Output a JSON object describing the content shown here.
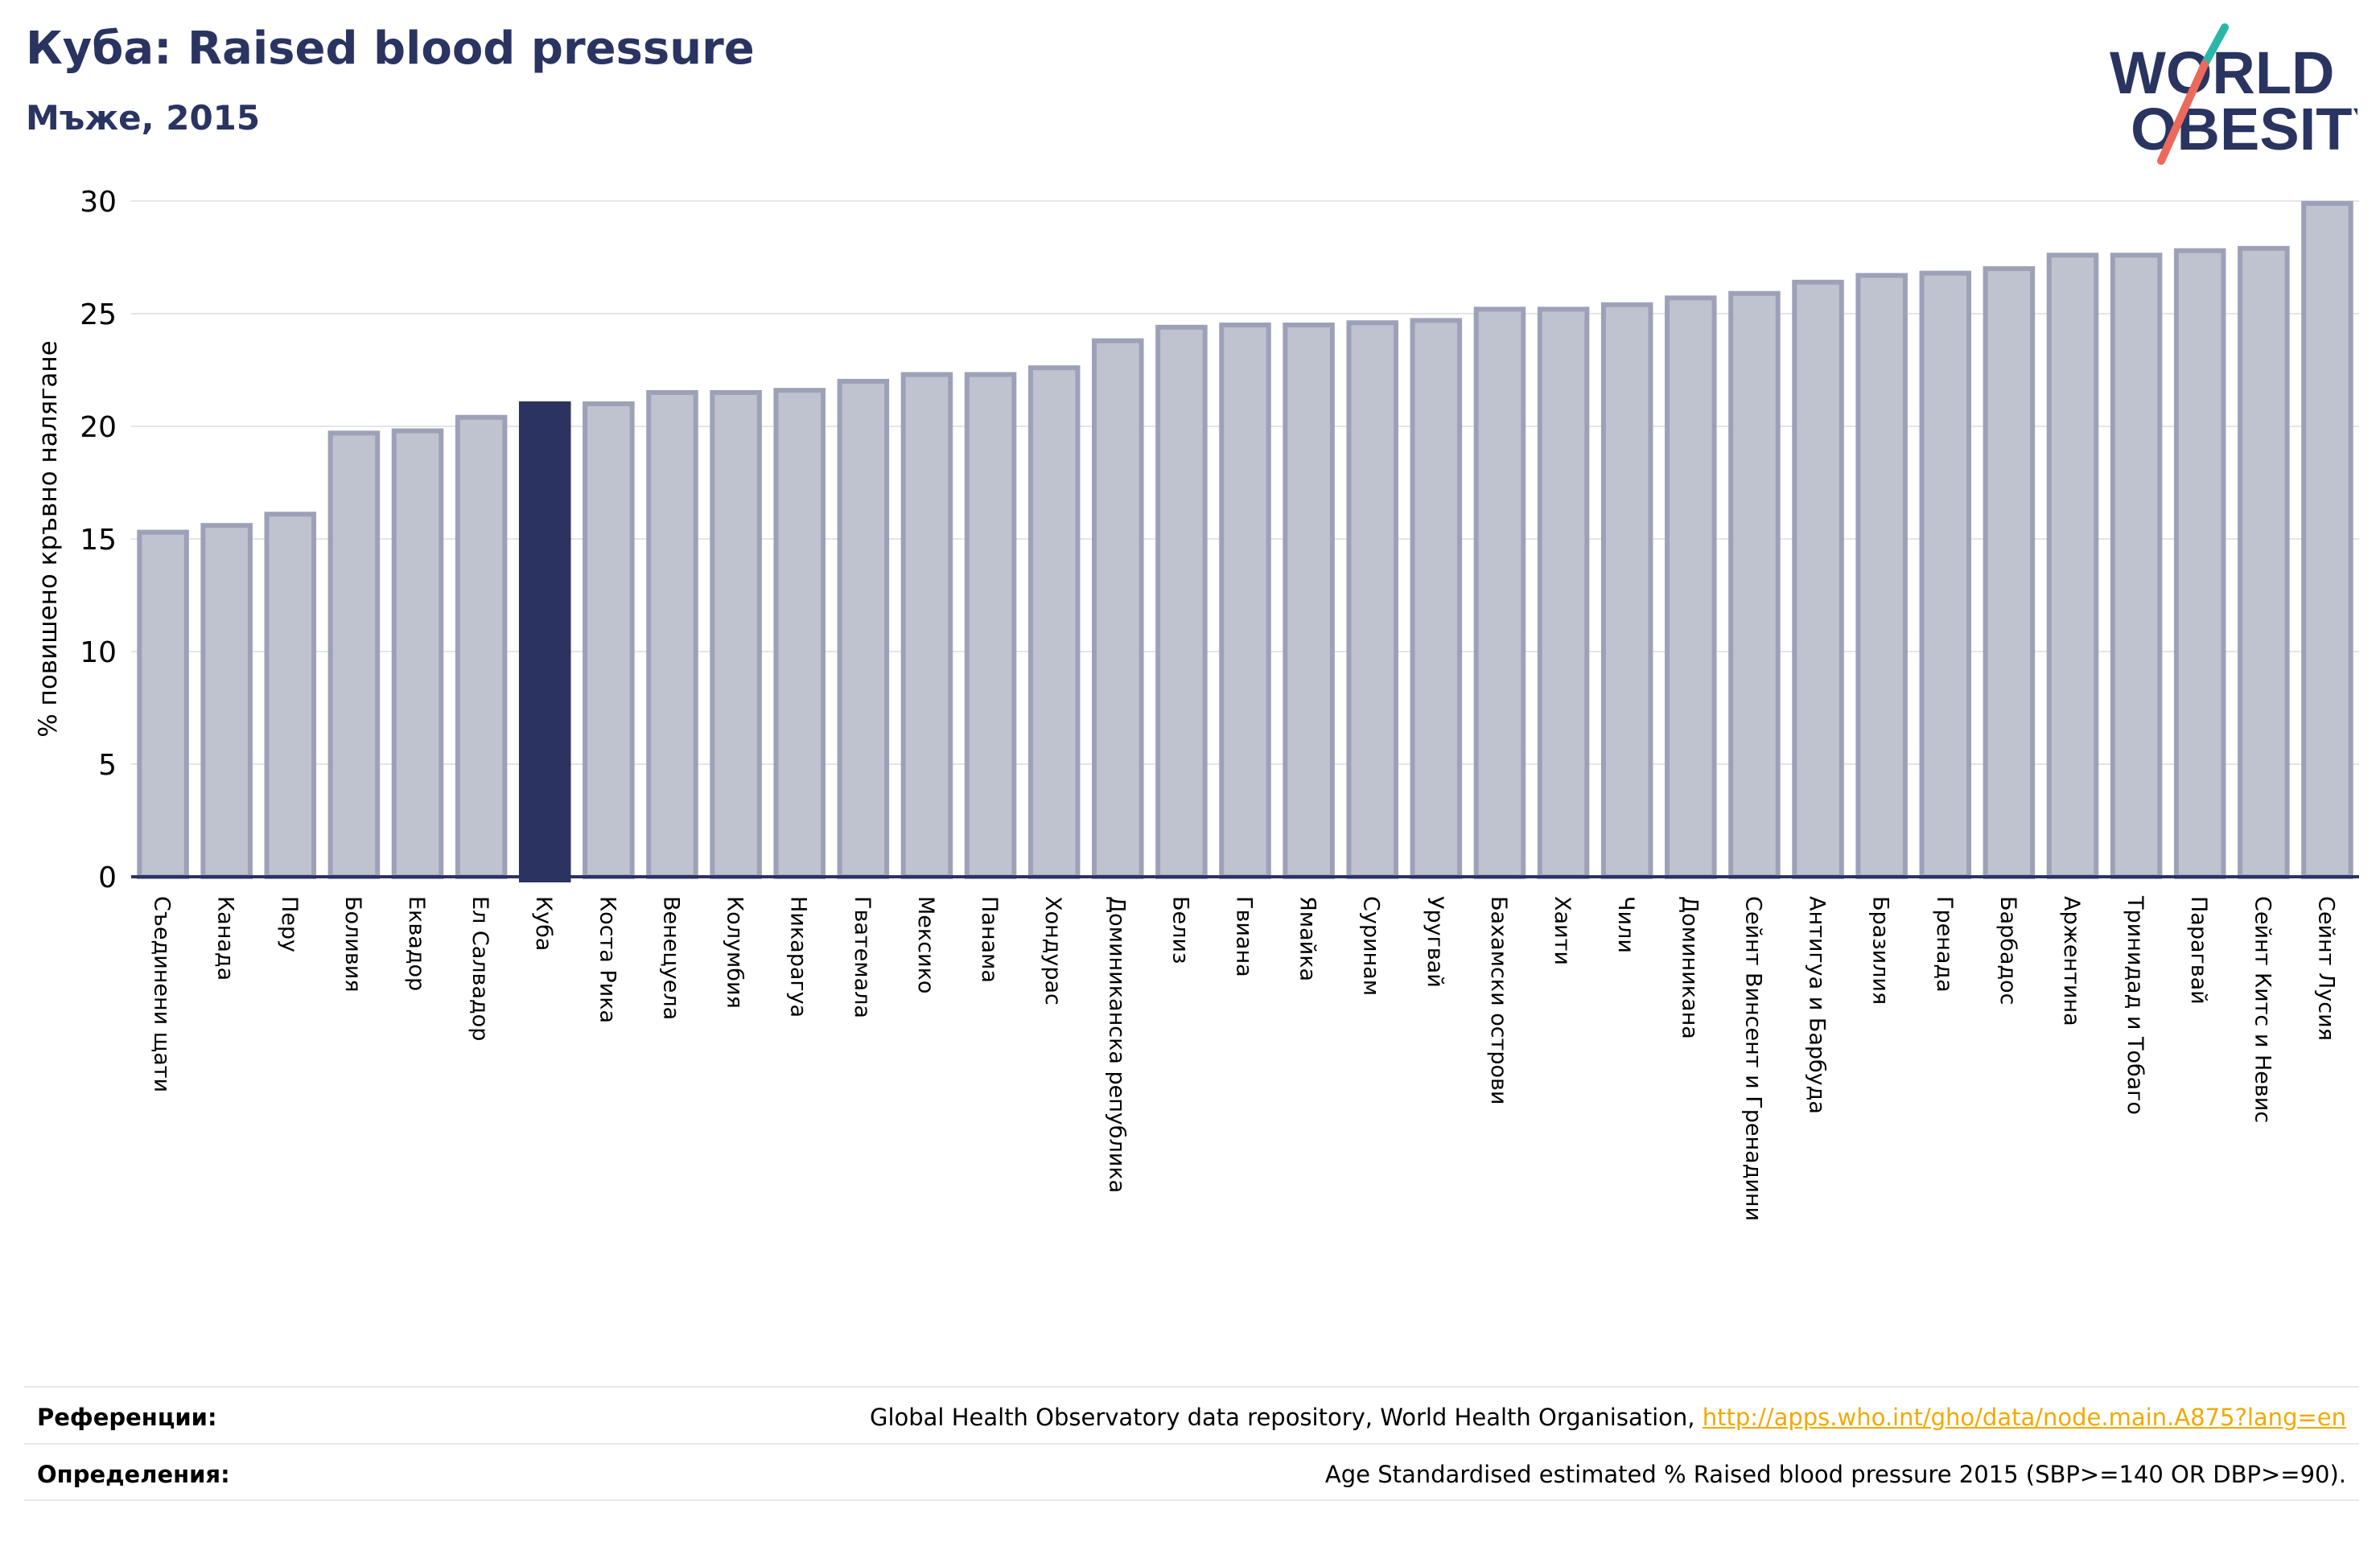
{
  "header": {
    "title": "Куба: Raised blood pressure",
    "subtitle": "Мъже, 2015"
  },
  "logo": {
    "line1": "WORLD",
    "line2": "OBESITY"
  },
  "chart_data": {
    "type": "bar",
    "title": "Куба: Raised blood pressure",
    "subtitle": "Мъже, 2015",
    "xlabel": "",
    "ylabel": "% повишено кръвно налягане",
    "ylim": [
      0,
      30
    ],
    "yticks": [
      0,
      5,
      10,
      15,
      20,
      25,
      30
    ],
    "grid": true,
    "highlight": "Куба",
    "colors": {
      "bar": "#bfc2cf",
      "bar_edge": "#9da1b8",
      "highlight": "#2b3461",
      "axis": "#2a3461",
      "grid": "#e4e4ea"
    },
    "categories": [
      "Съединени щати",
      "Канада",
      "Перу",
      "Боливия",
      "Еквадор",
      "Ел Салвадор",
      "Куба",
      "Коста Рика",
      "Венецуела",
      "Колумбия",
      "Никарагуа",
      "Гватемала",
      "Мексико",
      "Панама",
      "Хондурас",
      "Доминиканска република",
      "Белиз",
      "Гвиана",
      "Ямайка",
      "Суринам",
      "Уругвай",
      "Бахамски острови",
      "Хаити",
      "Чили",
      "Доминикана",
      "Сейнт Винсент и Гренадини",
      "Антигуа и Барбуда",
      "Бразилия",
      "Гренада",
      "Барбадос",
      "Аржентина",
      "Тринидад и Тобаго",
      "Парагвай",
      "Сейнт Китс и Невис",
      "Сейнт Лусия"
    ],
    "values": [
      15.3,
      15.6,
      16.1,
      19.7,
      19.8,
      20.4,
      21.0,
      21.0,
      21.5,
      21.5,
      21.6,
      22.0,
      22.3,
      22.3,
      22.6,
      23.8,
      24.4,
      24.5,
      24.5,
      24.6,
      24.7,
      25.2,
      25.2,
      25.4,
      25.7,
      25.9,
      26.4,
      26.7,
      26.8,
      27.0,
      27.6,
      27.6,
      27.8,
      27.9,
      29.9
    ]
  },
  "footer": {
    "references_label": "Референции:",
    "references_text": "Global Health Observatory data repository, World Health Organisation, ",
    "references_link": "http://apps.who.int/gho/data/node.main.A875?lang=en",
    "definitions_label": "Определения:",
    "definitions_text": "Age Standardised estimated % Raised blood pressure 2015 (SBP>=140 OR DBP>=90)."
  }
}
